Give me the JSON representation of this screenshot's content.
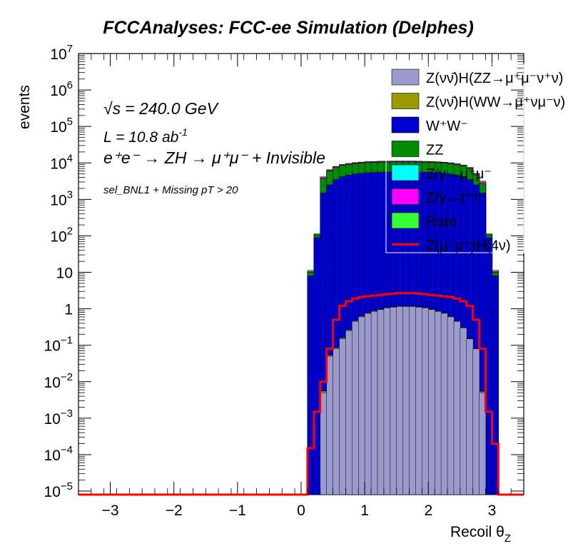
{
  "title": "FCCAnalyses: FCC-ee Simulation (Delphes)",
  "annotations": {
    "sqrt_s": "= 240.0 GeV",
    "sqrt_s_symbol": "√s",
    "lumi_prefix": "L = 10.8 ab",
    "lumi_exp": "-1",
    "process": "e⁺e⁻ → ZH → μ⁺μ⁻ + Invisible",
    "selection": "sel_BNL1 + Missing pT > 20"
  },
  "chart_data": {
    "type": "area",
    "stacked": true,
    "log_y": true,
    "title": "FCCAnalyses: FCC-ee Simulation (Delphes)",
    "xlabel": "Recoil θ_Z",
    "xlabel_main": "Recoil θ",
    "xlabel_sub": "Z",
    "ylabel": "events",
    "xlim": [
      -3.5,
      3.5
    ],
    "ylim": [
      8e-06,
      10000000
    ],
    "x_ticks": [
      -3,
      -2,
      -1,
      0,
      1,
      2,
      3
    ],
    "x_tick_labels": [
      "−3",
      "−2",
      "−1",
      "0",
      "1",
      "2",
      "3"
    ],
    "y_ticks": [
      1e-05,
      0.0001,
      0.001,
      0.01,
      0.1,
      1,
      10,
      100,
      1000,
      10000,
      100000,
      1000000,
      10000000
    ],
    "y_tick_labels": [
      {
        "base": "10",
        "exp": "−5"
      },
      {
        "base": "10",
        "exp": "−4"
      },
      {
        "base": "10",
        "exp": "−3"
      },
      {
        "base": "10",
        "exp": "−2"
      },
      {
        "base": "10",
        "exp": "−1"
      },
      {
        "base": "1",
        "exp": ""
      },
      {
        "base": "10",
        "exp": ""
      },
      {
        "base": "10",
        "exp": "2"
      },
      {
        "base": "10",
        "exp": "3"
      },
      {
        "base": "10",
        "exp": "4"
      },
      {
        "base": "10",
        "exp": "5"
      },
      {
        "base": "10",
        "exp": "6"
      },
      {
        "base": "10",
        "exp": "7"
      }
    ],
    "bin_edges": [
      0.0,
      0.1,
      0.2,
      0.3,
      0.4,
      0.5,
      0.6,
      0.7,
      0.8,
      0.9,
      1.0,
      1.1,
      1.2,
      1.3,
      1.4,
      1.5,
      1.6,
      1.7,
      1.8,
      1.9,
      2.0,
      2.1,
      2.2,
      2.3,
      2.4,
      2.5,
      2.6,
      2.7,
      2.8,
      2.9,
      3.0,
      3.1,
      3.2
    ],
    "grid": false,
    "legend_position": "top-right",
    "series": [
      {
        "name": "Z(νν̄)H(ZZ→μ⁺μ⁻ν⁺ν)",
        "color": "#9a9acc",
        "values": [
          0,
          0,
          0,
          0.005,
          0.05,
          0.08,
          0.15,
          0.25,
          0.45,
          0.6,
          0.75,
          0.85,
          0.95,
          1.05,
          1.1,
          1.15,
          1.15,
          1.15,
          1.1,
          1.05,
          0.95,
          0.85,
          0.75,
          0.6,
          0.45,
          0.3,
          0.15,
          0.08,
          0.005,
          0,
          0,
          0
        ]
      },
      {
        "name": "Z(νν̄)H(WW→μ⁺νμ⁻ν)",
        "color": "#999900",
        "values": [
          0,
          0,
          0,
          0.0005,
          0.003,
          0.006,
          0.01,
          0.015,
          0.02,
          0.028,
          0.018,
          0.03,
          0.025,
          0.032,
          0.03,
          0.033,
          0.03,
          0.035,
          0.028,
          0.033,
          0.03,
          0.02,
          0.025,
          0.018,
          0.01,
          0.008,
          0.004,
          0.002,
          0.0004,
          0,
          0,
          0
        ]
      },
      {
        "name": "W⁺W⁻",
        "color": "#0000cc",
        "values": [
          0,
          8,
          90,
          1500,
          2500,
          3500,
          4200,
          4600,
          5000,
          5200,
          5400,
          5500,
          5600,
          5600,
          5700,
          5700,
          5700,
          5700,
          5600,
          5600,
          5500,
          5400,
          5200,
          5000,
          4600,
          4200,
          3500,
          2500,
          1500,
          90,
          8,
          0
        ]
      },
      {
        "name": "ZZ",
        "color": "#008c00",
        "values": [
          0,
          2,
          15,
          2200,
          3500,
          4000,
          4300,
          4500,
          4600,
          4700,
          4800,
          4800,
          4900,
          4900,
          4900,
          4900,
          4900,
          4900,
          4900,
          4800,
          4800,
          4700,
          4600,
          4500,
          4300,
          4000,
          3500,
          2200,
          1200,
          15,
          2,
          0
        ]
      },
      {
        "name": "Z/γ→μ⁺μ⁻",
        "color": "#00ffff",
        "values": [
          0,
          0,
          0,
          0,
          0,
          0,
          0,
          0,
          0,
          0,
          0,
          0,
          0,
          0,
          0,
          0,
          0,
          0,
          0,
          0,
          0,
          0,
          0,
          0,
          0,
          0,
          0,
          0,
          0,
          0,
          0,
          0
        ]
      },
      {
        "name": "Z/γ→τ⁺τ⁻",
        "color": "#ff00ff",
        "values": [
          0,
          0.5,
          3,
          300,
          350,
          380,
          400,
          420,
          440,
          450,
          460,
          470,
          480,
          480,
          480,
          480,
          480,
          480,
          480,
          480,
          470,
          460,
          450,
          440,
          420,
          400,
          380,
          350,
          300,
          3,
          0.5,
          0
        ]
      },
      {
        "name": "Rare",
        "color": "#33ff33",
        "values": [
          0,
          0.9,
          6,
          150,
          170,
          180,
          185,
          190,
          195,
          198,
          200,
          200,
          200,
          200,
          200,
          200,
          200,
          200,
          200,
          200,
          200,
          198,
          195,
          190,
          185,
          180,
          170,
          160,
          150,
          6,
          0.9,
          0
        ]
      },
      {
        "name": "Z(μ⁻μ⁺)H(4ν)",
        "color": "#ff0000",
        "style": "line",
        "values": [
          0,
          0.00015,
          0.0015,
          0.01,
          0.08,
          0.5,
          1.2,
          1.6,
          1.9,
          2.1,
          2.2,
          2.3,
          2.4,
          2.5,
          2.6,
          2.7,
          2.7,
          2.7,
          2.6,
          2.5,
          2.4,
          2.3,
          2.2,
          2.1,
          1.9,
          1.6,
          1.2,
          0.5,
          0.08,
          0.0015,
          0.0002,
          0
        ]
      }
    ]
  }
}
